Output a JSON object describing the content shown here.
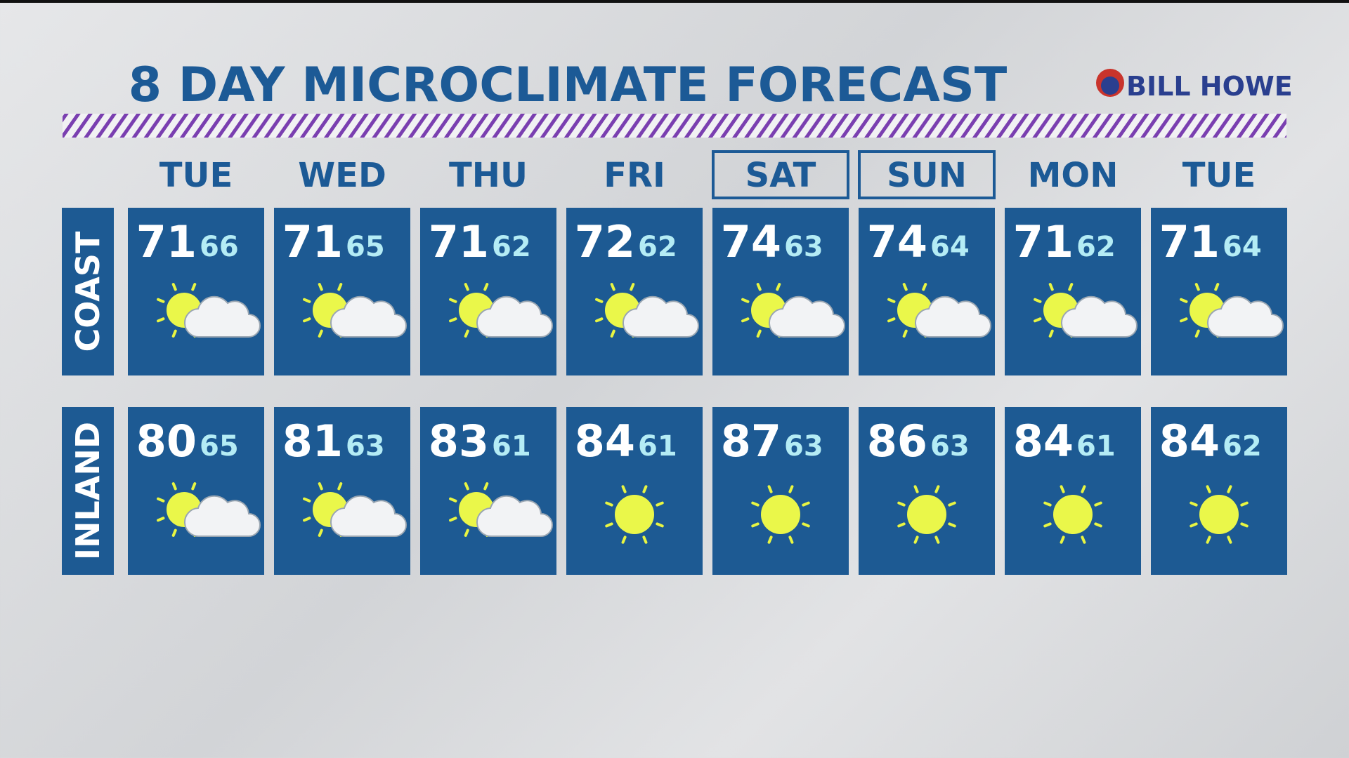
{
  "title": "8 DAY MICROCLIMATE FORECAST",
  "sponsor": "BILL HOWE",
  "days": [
    "TUE",
    "WED",
    "THU",
    "FRI",
    "SAT",
    "SUN",
    "MON",
    "TUE"
  ],
  "rows": [
    {
      "label": "COAST",
      "highs": [
        71,
        71,
        71,
        72,
        74,
        74,
        71,
        71
      ],
      "lows": [
        66,
        65,
        62,
        62,
        63,
        64,
        62,
        64
      ]
    },
    {
      "label": "INLAND",
      "highs": [
        80,
        81,
        83,
        84,
        87,
        86,
        84,
        84
      ],
      "lows": [
        65,
        63,
        61,
        61,
        63,
        63,
        61,
        62
      ]
    }
  ]
}
